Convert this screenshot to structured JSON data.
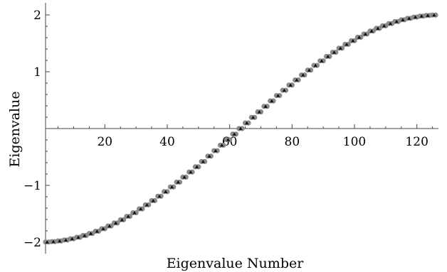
{
  "chart_data": {
    "type": "scatter",
    "title": "",
    "xlabel": "Eigenvalue Number",
    "ylabel": "Eigenvalue",
    "xlim": [
      1,
      126
    ],
    "ylim": [
      -2,
      2
    ],
    "x_ticks": [
      20,
      40,
      60,
      80,
      100,
      120
    ],
    "x_tick_labels": [
      "20",
      "40",
      "60",
      "80",
      "100",
      "120"
    ],
    "y_ticks": [
      -2,
      -1,
      1,
      2
    ],
    "y_tick_labels": [
      "−2",
      "−1",
      "1",
      "2"
    ],
    "grid": false,
    "legend": "none",
    "n_points": 63,
    "formula": "y = -2*cos(pi*k/64), paired points at x = 2k-1 and 2k, k = 1..63",
    "series": [
      {
        "marker": "circle",
        "color": "#8a8a8a"
      },
      {
        "marker": "triangle",
        "color": "#111111"
      }
    ]
  }
}
